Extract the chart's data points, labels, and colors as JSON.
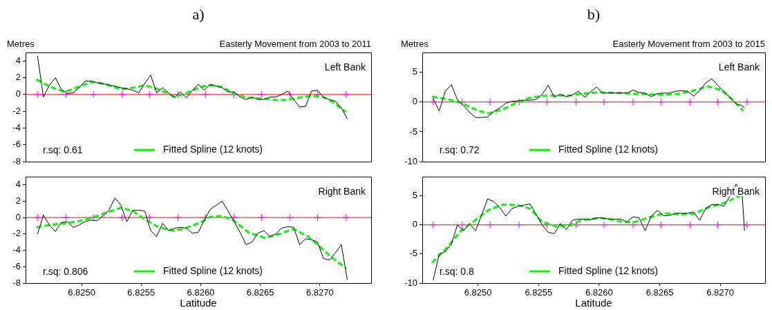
{
  "chart_data": [
    {
      "type": "line",
      "title": "a)",
      "subtitle": "Easterly Movement from 2003 to 2011",
      "ylabel": "Metres",
      "xlim": [
        6.82453,
        6.82743
      ],
      "ylim": [
        -8,
        5
      ],
      "yticks": [
        -8,
        -6,
        -4,
        -2,
        0,
        2,
        4
      ],
      "tick_labels": "y",
      "legend": "bottom",
      "marker": "none",
      "annotations": [
        "Left Bank",
        "r.sq: 0.61"
      ],
      "ref_lines": [
        {
          "axis": "y",
          "value": 0,
          "color": "#ff0000"
        }
      ],
      "series": [
        {
          "color": "#000000",
          "x": [
            6.82463,
            6.82468,
            6.82473,
            6.82478,
            6.82483,
            6.82488,
            6.82493,
            6.82498,
            6.82503,
            6.82508,
            6.82513,
            6.82518,
            6.82523,
            6.82528,
            6.82533,
            6.82538,
            6.82543,
            6.82548,
            6.82553,
            6.82558,
            6.82563,
            6.82568,
            6.82573,
            6.82578,
            6.82583,
            6.82588,
            6.82593,
            6.82598,
            6.82603,
            6.82608,
            6.82613,
            6.82618,
            6.82623,
            6.82628,
            6.82633,
            6.82638,
            6.82643,
            6.82648,
            6.82653,
            6.82658,
            6.82663,
            6.82668,
            6.82673,
            6.82678,
            6.82683,
            6.82688,
            6.82693,
            6.82698,
            6.82703,
            6.82708,
            6.82713,
            6.82718,
            6.82723
          ],
          "values": [
            4.6,
            -0.3,
            1.1,
            2.0,
            0.6,
            0.1,
            0.2,
            0.8,
            1.6,
            1.6,
            1.4,
            1.3,
            1.1,
            1.0,
            0.8,
            0.7,
            0.5,
            0.2,
            1.3,
            2.3,
            0.2,
            0.8,
            0.2,
            -0.4,
            0.3,
            -0.4,
            0.5,
            1.2,
            0.5,
            1.2,
            1.0,
            0.8,
            0.3,
            0.3,
            -0.3,
            -0.6,
            -0.3,
            -0.6,
            -0.6,
            -0.3,
            -0.3,
            0.0,
            0.4,
            -0.6,
            -1.5,
            -1.4,
            0.4,
            0.5,
            -0.3,
            -0.6,
            -0.8,
            -1.6,
            -2.9
          ]
        },
        {
          "name": "Fitted Spline (12 knots)",
          "color": "#00ff00",
          "line_style": "dashed",
          "x": [
            6.82462,
            6.82474,
            6.82486,
            6.82499,
            6.82509,
            6.82521,
            6.82533,
            6.82543,
            6.82553,
            6.82565,
            6.82577,
            6.82585,
            6.826,
            6.82608,
            6.82618,
            6.82628,
            6.8264,
            6.82654,
            6.82666,
            6.82678,
            6.8269,
            6.82701,
            6.82711,
            6.82722
          ],
          "values": [
            1.8,
            0.9,
            0.3,
            1.0,
            1.5,
            1.2,
            0.6,
            0.8,
            1.1,
            0.6,
            -0.2,
            0.0,
            0.9,
            1.1,
            0.9,
            0.1,
            -0.4,
            -0.5,
            -0.7,
            -0.5,
            -0.2,
            -0.2,
            -0.9,
            -2.1
          ]
        },
        {
          "type": "scatter",
          "marker": "cross",
          "color": "#ff00ff",
          "x": [
            6.82463,
            6.82487,
            6.8251,
            6.82534,
            6.82557,
            6.82581,
            6.82604,
            6.82628,
            6.82651,
            6.82675,
            6.82698,
            6.82722
          ],
          "values": [
            0,
            0,
            0,
            0,
            0,
            0,
            0,
            0,
            0,
            0,
            0,
            0
          ]
        }
      ]
    },
    {
      "type": "line",
      "title": "b)",
      "subtitle": "Easterly Movement from 2003 to 2015",
      "ylabel": "Metres",
      "xlim": [
        6.82454,
        6.82737
      ],
      "ylim": [
        -10,
        8.3
      ],
      "yticks": [
        -10,
        -5,
        0,
        5
      ],
      "tick_labels": "y",
      "legend": "bottom",
      "marker": "none",
      "annotations": [
        "Left Bank",
        "r.sq: 0.72"
      ],
      "ref_lines": [
        {
          "axis": "y",
          "value": 0,
          "color": "#ff0000"
        }
      ],
      "series": [
        {
          "color": "#000000",
          "x": [
            6.82463,
            6.82468,
            6.82473,
            6.82478,
            6.82483,
            6.82488,
            6.82493,
            6.82498,
            6.82503,
            6.82508,
            6.82513,
            6.82518,
            6.82523,
            6.82528,
            6.82533,
            6.82538,
            6.82543,
            6.82548,
            6.82553,
            6.82558,
            6.82563,
            6.82568,
            6.82573,
            6.82578,
            6.82583,
            6.82588,
            6.82593,
            6.82598,
            6.82603,
            6.82608,
            6.82613,
            6.82618,
            6.82623,
            6.82628,
            6.82633,
            6.82638,
            6.82643,
            6.82648,
            6.82653,
            6.82658,
            6.82663,
            6.82668,
            6.82673,
            6.82678,
            6.82683,
            6.82688,
            6.82693,
            6.82698,
            6.82703,
            6.82708,
            6.82713,
            6.82718,
            6.8272
          ],
          "values": [
            0.6,
            -1.5,
            1.8,
            2.9,
            0.4,
            -0.6,
            -1.7,
            -2.6,
            -2.6,
            -2.5,
            -1.6,
            -1.0,
            -0.2,
            0.1,
            0.2,
            0.3,
            0.3,
            0.4,
            1.3,
            2.8,
            0.8,
            1.3,
            0.9,
            1.2,
            1.8,
            0.8,
            1.7,
            2.5,
            1.5,
            1.5,
            1.5,
            1.5,
            1.5,
            2.0,
            1.6,
            1.5,
            0.9,
            1.4,
            1.5,
            1.5,
            1.8,
            1.9,
            1.8,
            1.0,
            1.9,
            3.2,
            3.9,
            2.8,
            1.8,
            0.8,
            -0.3,
            -0.6,
            -1.0
          ]
        },
        {
          "name": "Fitted Spline (12 knots)",
          "color": "#00ff00",
          "line_style": "dashed",
          "x": [
            6.82462,
            6.82474,
            6.82486,
            6.82499,
            6.82509,
            6.82521,
            6.82533,
            6.82543,
            6.82553,
            6.82565,
            6.82577,
            6.82585,
            6.826,
            6.82608,
            6.82618,
            6.82628,
            6.8264,
            6.82654,
            6.82666,
            6.82678,
            6.8269,
            6.82701,
            6.82711,
            6.82719
          ],
          "values": [
            0.9,
            0.5,
            -0.1,
            -1.4,
            -1.9,
            -1.2,
            0.0,
            0.7,
            1.0,
            1.1,
            1.1,
            1.4,
            1.6,
            1.6,
            1.5,
            1.4,
            1.3,
            1.2,
            1.4,
            1.9,
            2.6,
            2.0,
            0.2,
            -1.5
          ]
        },
        {
          "type": "scatter",
          "marker": "cross",
          "color": "#ff00ff",
          "x": [
            6.82463,
            6.82487,
            6.8251,
            6.82534,
            6.82557,
            6.82581,
            6.82604,
            6.82628,
            6.82651,
            6.82675,
            6.82698,
            6.82722
          ],
          "values": [
            0,
            0,
            0,
            0,
            0,
            0,
            0,
            0,
            0,
            0,
            0,
            0
          ]
        }
      ]
    },
    {
      "type": "line",
      "xlabel": "Latitude",
      "xlim": [
        6.82453,
        6.82743
      ],
      "ylim": [
        -8,
        5
      ],
      "yticks": [
        -8,
        -6,
        -4,
        -2,
        0,
        2,
        4
      ],
      "xticks": [
        {
          "value": 6.825,
          "label": "6.8250"
        },
        {
          "value": 6.8255,
          "label": "6.8255"
        },
        {
          "value": 6.826,
          "label": "6.8260"
        },
        {
          "value": 6.8265,
          "label": "6.8265"
        },
        {
          "value": 6.827,
          "label": "6.8270"
        }
      ],
      "legend": "bottom",
      "marker": "none",
      "annotations": [
        "Right Bank",
        "r.sq: 0.806"
      ],
      "ref_lines": [
        {
          "axis": "y",
          "value": 0,
          "color": "#ff0000"
        }
      ],
      "series": [
        {
          "color": "#000000",
          "x": [
            6.82463,
            6.82468,
            6.82473,
            6.82478,
            6.82483,
            6.82488,
            6.82493,
            6.82498,
            6.82503,
            6.82508,
            6.82513,
            6.82518,
            6.82523,
            6.82528,
            6.82533,
            6.82538,
            6.82543,
            6.82548,
            6.82553,
            6.82558,
            6.82563,
            6.82568,
            6.82573,
            6.82578,
            6.82583,
            6.82588,
            6.82593,
            6.82598,
            6.82603,
            6.82608,
            6.82613,
            6.82618,
            6.82623,
            6.82628,
            6.82633,
            6.82638,
            6.82643,
            6.82648,
            6.82653,
            6.82658,
            6.82663,
            6.82668,
            6.82673,
            6.82678,
            6.82683,
            6.82688,
            6.82693,
            6.82698,
            6.82703,
            6.82708,
            6.82713,
            6.82718,
            6.82723
          ],
          "values": [
            -2.0,
            0.3,
            -0.9,
            -1.7,
            -0.6,
            -0.5,
            -1.2,
            -0.9,
            -0.5,
            -0.3,
            -0.4,
            0.2,
            0.9,
            2.4,
            1.5,
            -0.5,
            0.9,
            0.9,
            0.8,
            -1.6,
            -2.3,
            -0.7,
            -1.6,
            -1.3,
            -1.2,
            -1.3,
            -1.9,
            -1.8,
            -0.3,
            1.0,
            1.5,
            2.0,
            0.8,
            -0.5,
            -1.8,
            -3.3,
            -3.0,
            -1.9,
            -1.6,
            -2.3,
            -2.0,
            -1.3,
            -1.1,
            -1.2,
            -3.3,
            -2.6,
            -2.7,
            -3.0,
            -5.0,
            -5.2,
            -4.3,
            -3.3,
            -7.6
          ]
        },
        {
          "name": "Fitted Spline (12 knots)",
          "color": "#00ff00",
          "line_style": "dashed",
          "x": [
            6.82462,
            6.82474,
            6.82486,
            6.82499,
            6.82509,
            6.82521,
            6.82533,
            6.82543,
            6.82553,
            6.82565,
            6.82577,
            6.82585,
            6.826,
            6.82608,
            6.82618,
            6.82628,
            6.8264,
            6.82654,
            6.82666,
            6.82678,
            6.8269,
            6.82701,
            6.82711,
            6.82722
          ],
          "values": [
            -1.2,
            -0.9,
            -0.7,
            -0.4,
            0.0,
            0.6,
            1.2,
            0.8,
            -0.2,
            -1.2,
            -1.6,
            -1.4,
            -0.6,
            0.1,
            0.2,
            -0.4,
            -1.8,
            -2.5,
            -2.0,
            -1.4,
            -2.3,
            -3.7,
            -5.0,
            -6.2
          ]
        },
        {
          "type": "scatter",
          "marker": "cross",
          "color": "#ff00ff",
          "x": [
            6.82463,
            6.82487,
            6.8251,
            6.82534,
            6.82557,
            6.82581,
            6.82604,
            6.82628,
            6.82651,
            6.82675,
            6.82698,
            6.82722
          ],
          "values": [
            0,
            0,
            0,
            0,
            0,
            0,
            0,
            0,
            0,
            0,
            0,
            0
          ]
        }
      ]
    },
    {
      "type": "line",
      "xlabel": "Latitude",
      "xlim": [
        6.82454,
        6.82737
      ],
      "ylim": [
        -10,
        8.3
      ],
      "yticks": [
        -10,
        -5,
        0,
        5
      ],
      "xticks": [
        {
          "value": 6.825,
          "label": "6.8250"
        },
        {
          "value": 6.8255,
          "label": "6.8255"
        },
        {
          "value": 6.826,
          "label": "6.8260"
        },
        {
          "value": 6.8265,
          "label": "6.8265"
        },
        {
          "value": 6.827,
          "label": "6.8270"
        }
      ],
      "legend": "bottom",
      "marker": "none",
      "annotations": [
        "Right Bank",
        "r.sq: 0.8"
      ],
      "ref_lines": [
        {
          "axis": "y",
          "value": 0,
          "color": "#ff0000"
        }
      ],
      "series": [
        {
          "color": "#000000",
          "x": [
            6.82463,
            6.82468,
            6.82473,
            6.82478,
            6.82483,
            6.82488,
            6.82493,
            6.82498,
            6.82503,
            6.82508,
            6.82513,
            6.82518,
            6.82523,
            6.82528,
            6.82533,
            6.82538,
            6.82543,
            6.82548,
            6.82553,
            6.82558,
            6.82563,
            6.82568,
            6.82573,
            6.82578,
            6.82583,
            6.82588,
            6.82593,
            6.82598,
            6.82603,
            6.82608,
            6.82613,
            6.82618,
            6.82623,
            6.82628,
            6.82633,
            6.82638,
            6.82643,
            6.82648,
            6.82653,
            6.82658,
            6.82663,
            6.82668,
            6.82673,
            6.82678,
            6.82683,
            6.82688,
            6.82693,
            6.82698,
            6.82703,
            6.82708,
            6.82713,
            6.82718,
            6.8272
          ],
          "values": [
            -9.5,
            -5.0,
            -4.6,
            -3.3,
            0.0,
            -1.0,
            0.2,
            -1.0,
            1.7,
            4.5,
            4.0,
            3.0,
            1.5,
            2.8,
            3.2,
            3.4,
            3.6,
            1.8,
            0.0,
            -1.3,
            -1.5,
            0.2,
            -0.8,
            0.8,
            1.0,
            1.0,
            0.9,
            1.2,
            1.2,
            1.0,
            1.0,
            1.0,
            0.5,
            1.4,
            1.2,
            -1.0,
            1.5,
            2.5,
            1.6,
            1.6,
            2.0,
            2.0,
            2.0,
            2.2,
            0.8,
            2.8,
            3.5,
            3.5,
            3.2,
            5.0,
            7.0,
            5.5,
            -1.0
          ]
        },
        {
          "name": "Fitted Spline (12 knots)",
          "color": "#00ff00",
          "line_style": "dashed",
          "x": [
            6.82462,
            6.82474,
            6.82486,
            6.82499,
            6.82509,
            6.82521,
            6.82533,
            6.82543,
            6.82553,
            6.82565,
            6.82577,
            6.82585,
            6.826,
            6.82608,
            6.82618,
            6.82628,
            6.8264,
            6.82654,
            6.82666,
            6.82678,
            6.8269,
            6.82701,
            6.82711,
            6.82719
          ],
          "values": [
            -6.5,
            -4.0,
            -1.0,
            1.0,
            2.6,
            3.5,
            3.4,
            2.8,
            0.5,
            -0.3,
            0.0,
            0.8,
            1.2,
            1.0,
            0.6,
            0.4,
            1.2,
            2.0,
            1.8,
            1.9,
            3.0,
            3.6,
            4.5,
            5.3
          ]
        },
        {
          "type": "scatter",
          "marker": "cross",
          "color": "#ff00ff",
          "x": [
            6.82463,
            6.82487,
            6.8251,
            6.82534,
            6.82557,
            6.82581,
            6.82604,
            6.82628,
            6.82651,
            6.82675,
            6.82698,
            6.82722
          ],
          "values": [
            0,
            0,
            0,
            0,
            0,
            0,
            0,
            0,
            0,
            0,
            0,
            0
          ]
        }
      ]
    }
  ]
}
